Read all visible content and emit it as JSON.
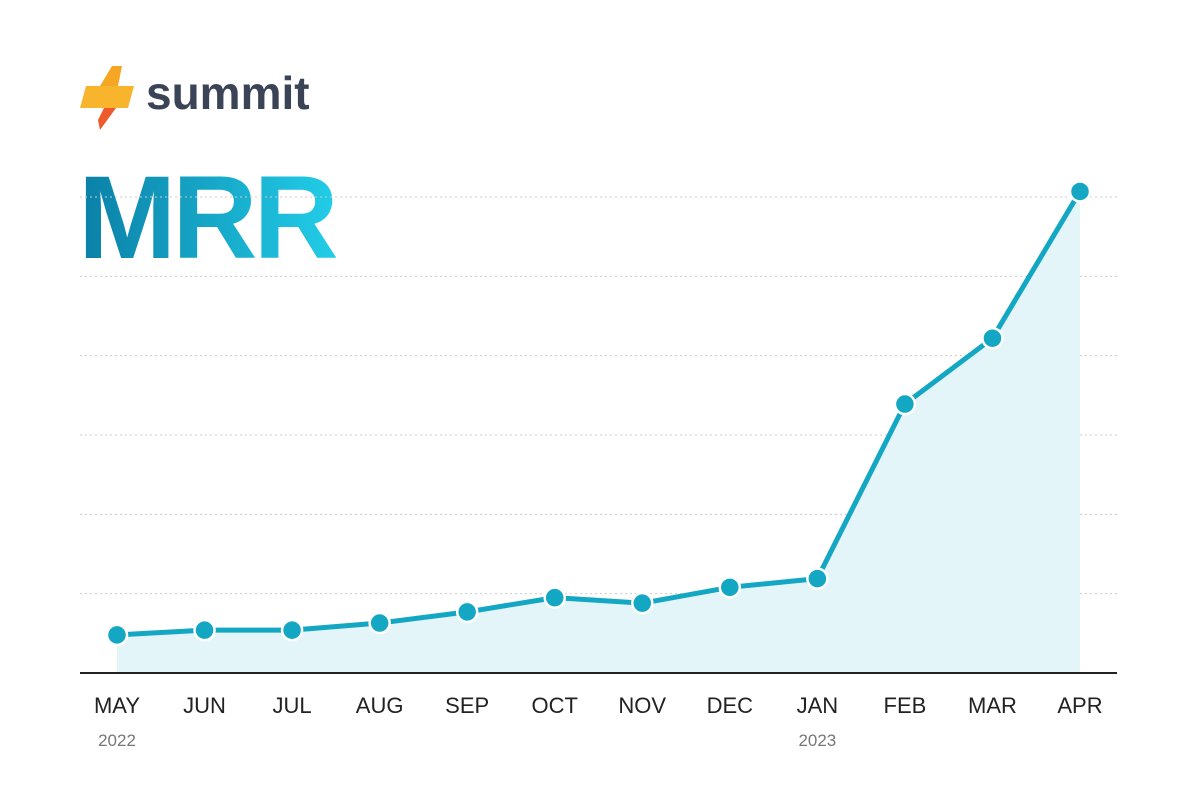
{
  "brand": "summit",
  "chart_data": {
    "type": "area-line",
    "title": "MRR",
    "categories": [
      "MAY",
      "JUN",
      "JUL",
      "AUG",
      "SEP",
      "OCT",
      "NOV",
      "DEC",
      "JAN",
      "FEB",
      "MAR",
      "APR"
    ],
    "years": [
      "2022",
      null,
      null,
      null,
      null,
      null,
      null,
      null,
      "2023",
      null,
      null,
      null
    ],
    "values": [
      0.48,
      0.54,
      0.54,
      0.63,
      0.77,
      0.95,
      0.88,
      1.08,
      1.19,
      3.39,
      4.22,
      6.07
    ],
    "color": "#14a7c3",
    "fill": "#e4f5f9",
    "ylim": [
      0,
      6.2
    ],
    "yticks": [
      0,
      1,
      2,
      3,
      4,
      5,
      6
    ],
    "grid": true
  }
}
